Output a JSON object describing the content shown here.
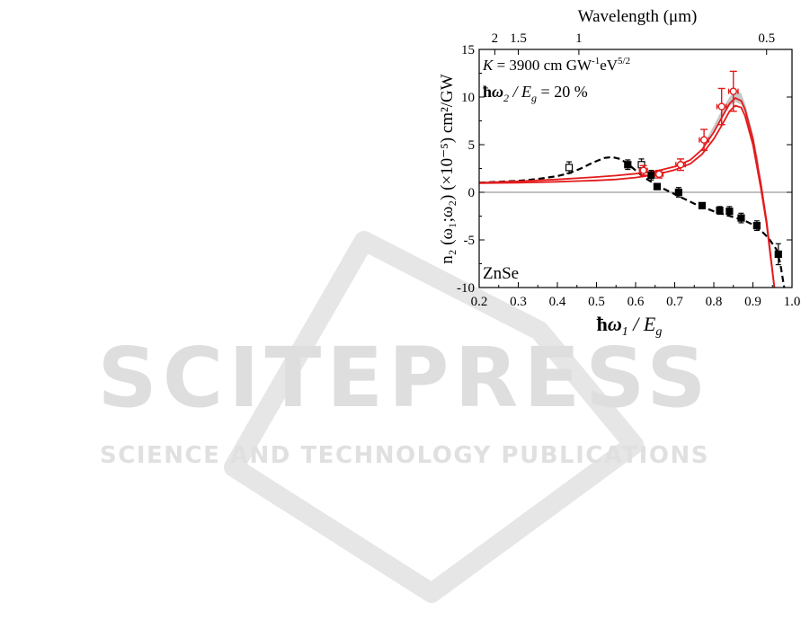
{
  "watermark": {
    "line1": "SCITEPRESS",
    "line2": "SCIENCE AND TECHNOLOGY PUBLICATIONS",
    "color": "#d9d9d9"
  },
  "chart_data": {
    "type": "scatter",
    "top_axis": {
      "label": "Wavelength (μm)",
      "ticks": [
        {
          "label": "2",
          "x": 0.24
        },
        {
          "label": "1.5",
          "x": 0.3
        },
        {
          "label": "1",
          "x": 0.455
        },
        {
          "label": "0.5",
          "x": 0.935
        }
      ]
    },
    "xlabel": {
      "hbar": "ħ",
      "omega": "ω",
      "sub": "1",
      "slash": " / E",
      "g": "g"
    },
    "ylabel": "n₂ (ω₁;ω₂) (×10⁻⁵) cm²/GW",
    "xlim": [
      0.2,
      1.0
    ],
    "ylim": [
      -10,
      15
    ],
    "xticks": [
      0.2,
      0.3,
      0.4,
      0.5,
      0.6,
      0.7,
      0.8,
      0.9,
      1.0
    ],
    "xtick_labels": [
      "0.2",
      "0.3",
      "0.4",
      "0.5",
      "0.6",
      "0.7",
      "0.8",
      "0.9",
      "1.0"
    ],
    "yticks": [
      -10,
      -5,
      0,
      5,
      10,
      15
    ],
    "ytick_labels": [
      "-10",
      "-5",
      "0",
      "5",
      "10",
      "15"
    ],
    "annotations": {
      "k_line": "K = 3900 cm GW⁻¹eV⁵ᐟ²",
      "k_line_parts": {
        "K": "K",
        "eq": " = 3900 cm GW",
        "sup1": "-1",
        "ev": "eV",
        "sup2": "5/2"
      },
      "ratio_line": {
        "hbar": "ħ",
        "omega": "ω",
        "sub": "2",
        "slash": " / E",
        "g": "g",
        "rest": " = 20 %"
      },
      "material": "ZnSe"
    },
    "colors": {
      "red": "#e41a1c",
      "black": "#000000",
      "band": "#c8c8c8",
      "zero": "#808080"
    },
    "series": [
      {
        "kind": "theory-dashed",
        "color": "#000000",
        "x": [
          0.2,
          0.25,
          0.3,
          0.35,
          0.4,
          0.43,
          0.46,
          0.49,
          0.52,
          0.54,
          0.56,
          0.58,
          0.6,
          0.62,
          0.64,
          0.66,
          0.7,
          0.75,
          0.8,
          0.85,
          0.88,
          0.9,
          0.92,
          0.94,
          0.96,
          0.97,
          0.98
        ],
        "y": [
          1.0,
          1.1,
          1.2,
          1.4,
          1.7,
          2.0,
          2.5,
          3.1,
          3.6,
          3.7,
          3.5,
          3.0,
          2.3,
          1.6,
          1.1,
          0.6,
          -0.2,
          -1.2,
          -2.0,
          -2.6,
          -3.0,
          -3.4,
          -4.0,
          -4.8,
          -6.0,
          -7.5,
          -10.0
        ]
      },
      {
        "kind": "theory-red-upper",
        "color": "#e41a1c",
        "x": [
          0.2,
          0.3,
          0.4,
          0.5,
          0.55,
          0.6,
          0.65,
          0.7,
          0.74,
          0.77,
          0.8,
          0.82,
          0.84,
          0.855,
          0.87,
          0.88,
          0.9,
          0.92,
          0.935,
          0.945,
          0.955
        ],
        "y": [
          1.0,
          1.15,
          1.35,
          1.6,
          1.75,
          1.95,
          2.2,
          2.7,
          3.4,
          4.5,
          6.3,
          7.8,
          9.3,
          9.9,
          9.6,
          8.7,
          5.6,
          1.0,
          -3.0,
          -6.5,
          -10.0
        ]
      },
      {
        "kind": "theory-red-lower",
        "color": "#e41a1c",
        "x": [
          0.2,
          0.3,
          0.4,
          0.5,
          0.55,
          0.6,
          0.65,
          0.7,
          0.74,
          0.77,
          0.8,
          0.82,
          0.84,
          0.855,
          0.87,
          0.88,
          0.9,
          0.92,
          0.935,
          0.945,
          0.955
        ],
        "y": [
          0.95,
          1.0,
          1.1,
          1.25,
          1.35,
          1.55,
          1.85,
          2.35,
          3.0,
          4.0,
          5.6,
          7.0,
          8.5,
          9.1,
          8.9,
          8.0,
          5.0,
          0.5,
          -3.3,
          -6.8,
          -10.0
        ]
      },
      {
        "kind": "band-gray",
        "color": "#c8c8c8",
        "x": [
          0.78,
          0.8,
          0.82,
          0.84,
          0.855,
          0.87,
          0.88,
          0.9,
          0.915
        ],
        "y_upper": [
          5.5,
          7.0,
          8.6,
          10.0,
          10.7,
          10.4,
          9.3,
          6.2,
          3.2
        ],
        "y_lower": [
          5.0,
          6.3,
          7.7,
          9.0,
          9.5,
          9.2,
          8.3,
          5.3,
          2.4
        ]
      },
      {
        "kind": "data-filled-squares",
        "color": "#000000",
        "x": [
          0.58,
          0.64,
          0.655,
          0.71,
          0.77,
          0.815,
          0.84,
          0.87,
          0.91,
          0.965
        ],
        "y": [
          2.9,
          1.8,
          0.6,
          0.0,
          -1.4,
          -1.9,
          -2.0,
          -2.7,
          -3.5,
          -6.5
        ],
        "yerr": [
          0.5,
          0.5,
          0.3,
          0.5,
          0.3,
          0.4,
          0.5,
          0.5,
          0.5,
          1.1
        ]
      },
      {
        "kind": "data-open-squares",
        "color": "#000000",
        "x": [
          0.43,
          0.615
        ],
        "y": [
          2.6,
          2.9
        ],
        "yerr": [
          0.6,
          0.6
        ]
      },
      {
        "kind": "data-red-open-circles",
        "color": "#e41a1c",
        "x": [
          0.62,
          0.66,
          0.715,
          0.775,
          0.82,
          0.85
        ],
        "y": [
          2.3,
          1.9,
          2.9,
          5.5,
          9.0,
          10.6
        ],
        "yerr": [
          0.5,
          0.4,
          0.6,
          1.1,
          1.9,
          2.1
        ],
        "xerr": [
          0.01,
          0.01,
          0.012,
          0.012,
          0.012,
          0.012
        ]
      }
    ]
  }
}
